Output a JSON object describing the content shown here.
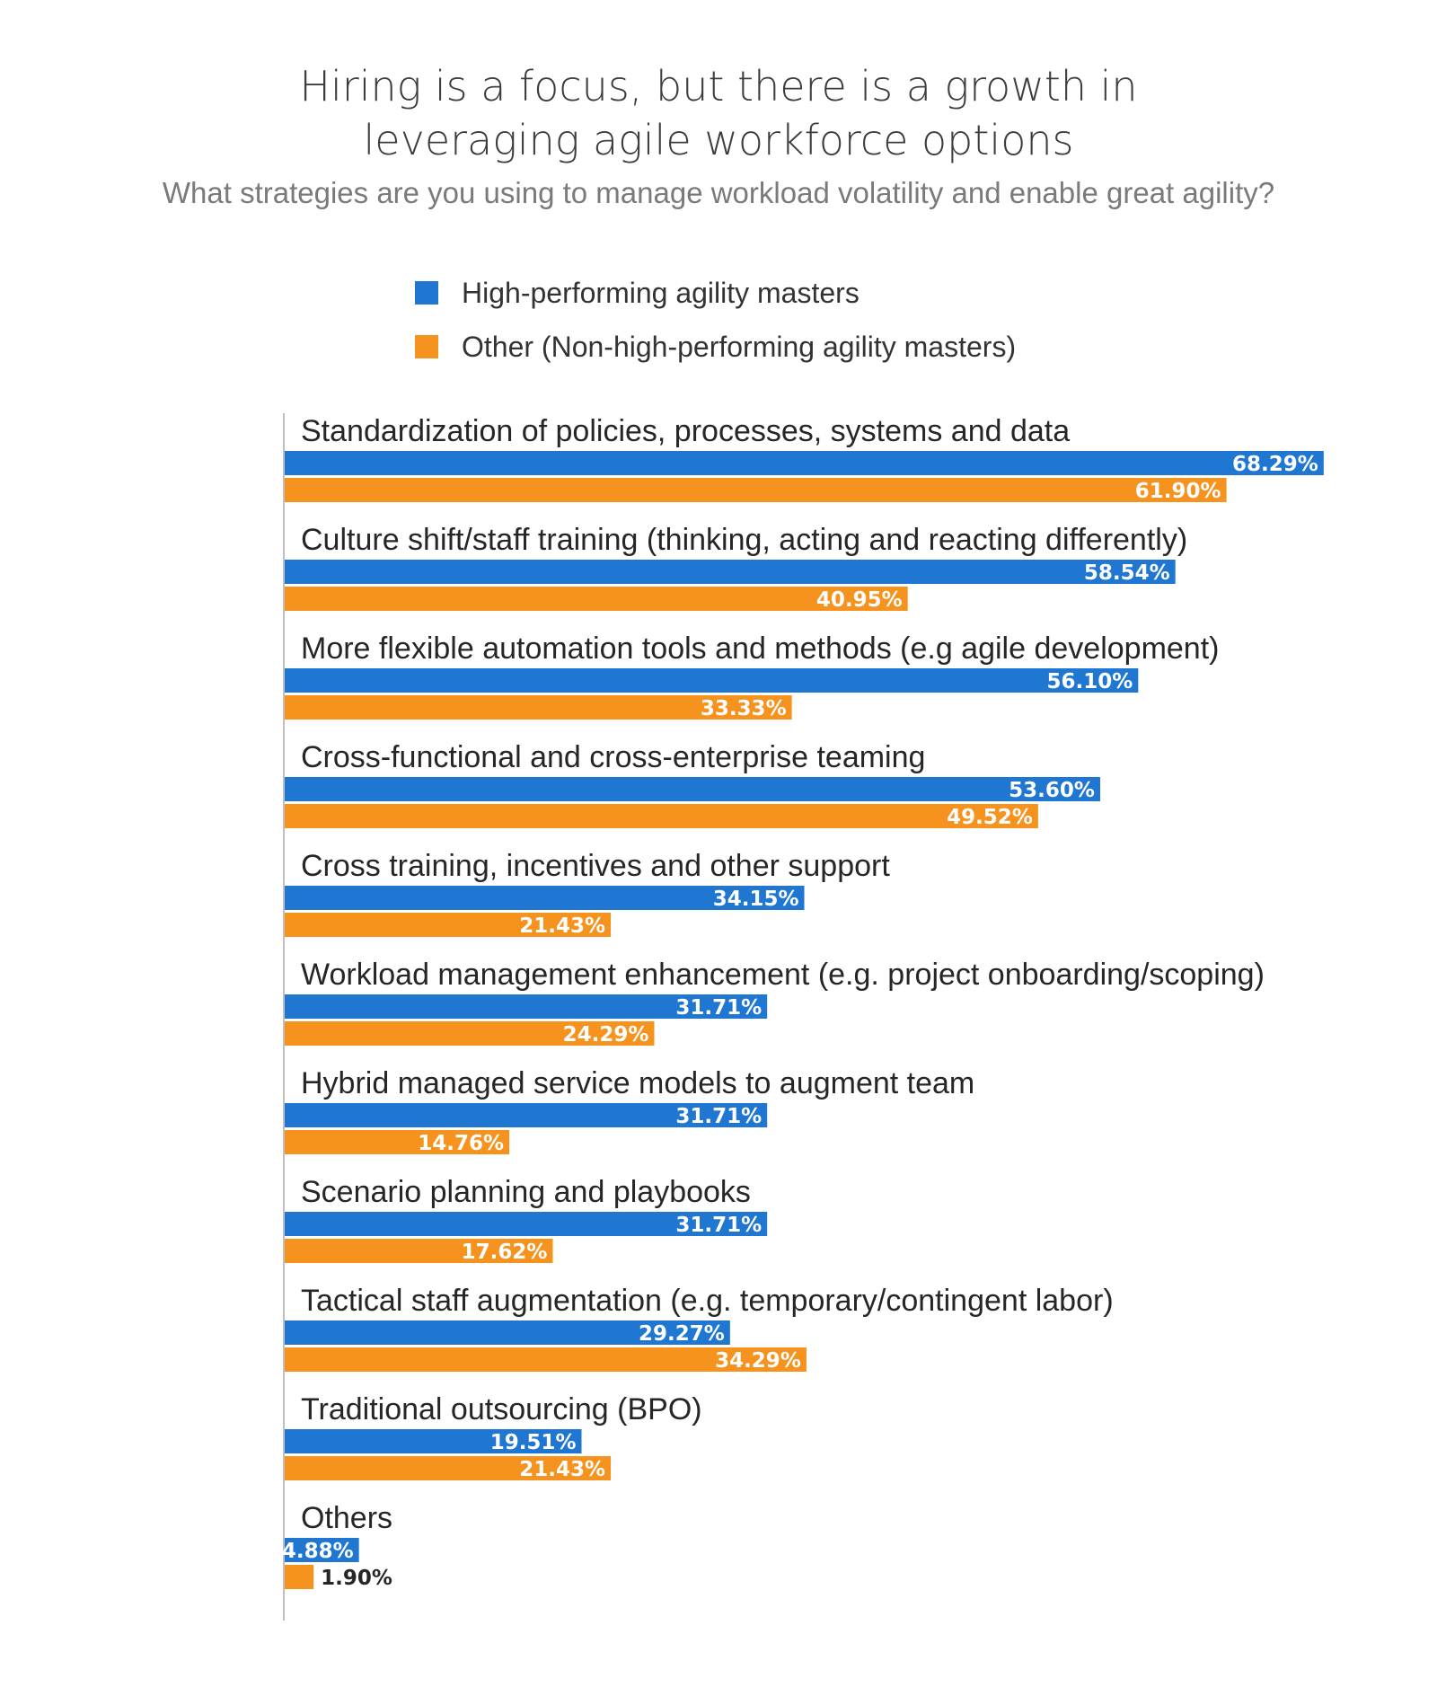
{
  "chart_data": {
    "type": "bar",
    "orientation": "horizontal",
    "title": [
      "Hiring is a focus, but there is a growth in",
      "leveraging agile workforce options"
    ],
    "subtitle": "What strategies are you using to manage workload volatility and enable great agility?",
    "categories": [
      "Standardization of policies, processes, systems and data",
      "Culture shift/staff training (thinking, acting and reacting differently)",
      "More flexible automation tools and methods (e.g agile development)",
      "Cross-functional and cross-enterprise teaming",
      "Cross training, incentives and other support",
      "Workload management enhancement (e.g. project onboarding/scoping)",
      "Hybrid managed service models to augment team",
      "Scenario planning and playbooks",
      "Tactical staff augmentation (e.g. temporary/contingent labor)",
      "Traditional outsourcing (BPO)",
      "Others"
    ],
    "series": [
      {
        "name": "High-performing agility masters",
        "color": "#1f77d2",
        "values": [
          68.29,
          58.54,
          56.1,
          53.6,
          34.15,
          31.71,
          31.71,
          31.71,
          29.27,
          19.51,
          4.88
        ],
        "labels": [
          "68.29%",
          "58.54%",
          "56.10%",
          "53.60%",
          "34.15%",
          "31.71%",
          "31.71%",
          "31.71%",
          "29.27%",
          "19.51%",
          "4.88%"
        ]
      },
      {
        "name": "Other (Non-high-performing agility masters)",
        "color": "#f6931f",
        "values": [
          61.9,
          40.95,
          33.33,
          49.52,
          21.43,
          24.29,
          14.76,
          17.62,
          34.29,
          21.43,
          1.9
        ],
        "labels": [
          "61.90%",
          "40.95%",
          "33.33%",
          "49.52%",
          "21.43%",
          "24.29%",
          "14.76%",
          "17.62%",
          "34.29%",
          "21.43%",
          "1.90%"
        ]
      }
    ],
    "xlim": [
      0,
      70
    ],
    "grid": false,
    "legend": "top"
  }
}
